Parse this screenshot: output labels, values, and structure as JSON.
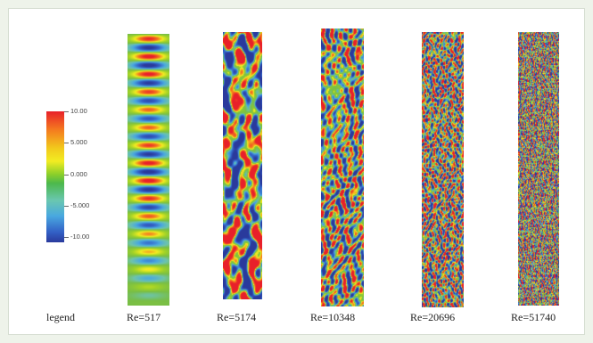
{
  "legend": {
    "ticks": [
      "10.00",
      "5.000",
      "0.000",
      "-5.000",
      "-10.00"
    ],
    "gradient_colors": [
      "#e8202a",
      "#f47a1f",
      "#f2ec22",
      "#4cb84c",
      "#49a8e0",
      "#2a3a9c"
    ],
    "label": "legend"
  },
  "panels": [
    {
      "label": "Re=517",
      "pattern": "bands"
    },
    {
      "label": "Re=5174",
      "pattern": "turbulent-coarse"
    },
    {
      "label": "Re=10348",
      "pattern": "turbulent-medium"
    },
    {
      "label": "Re=20696",
      "pattern": "turbulent-fine"
    },
    {
      "label": "Re=51740",
      "pattern": "turbulent-very-fine"
    }
  ]
}
